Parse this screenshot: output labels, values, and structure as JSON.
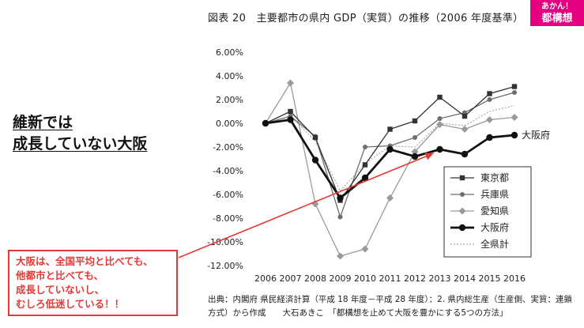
{
  "header": {
    "figure_title": "図表 20　主要都市の県内 GDP（実質）の推移（2006 年度基準）",
    "badge_line1": "あかん！",
    "badge_line2": "都構想"
  },
  "headline": {
    "line1": "維新では",
    "line2": "成長していない大阪"
  },
  "callout": {
    "line1": "大阪は、全国平均と比べても、",
    "line2": "他都市と比べても、",
    "line3": "成長していないし、",
    "line4": "むしろ低迷している！！"
  },
  "source": {
    "line1": "出典：内閣府 県民経済計算（平成 18 年度－平成 28 年度）：2. 県内総生産（生産側、実質：連鎖",
    "line2": "方式）から作成　　大石あきこ　「都構想を止めて大阪を豊かにする5つの方法」"
  },
  "colors": {
    "badge": "#e4007f",
    "callout": "#e53935",
    "tokyo": "#333333",
    "hyogo": "#6e6e6e",
    "aichi": "#9a9a9a",
    "osaka": "#111111",
    "national": "#aaaaaa"
  },
  "chart_data": {
    "type": "line",
    "title": "図表 20　主要都市の県内 GDP（実質）の推移（2006 年度基準）",
    "xlabel": "",
    "ylabel": "",
    "x": [
      "2006",
      "2007",
      "2008",
      "2009",
      "2010",
      "2011",
      "2012",
      "2013",
      "2014",
      "2015",
      "2016"
    ],
    "ylim": [
      -12,
      6
    ],
    "yticks": [
      "6.00%",
      "4.00%",
      "2.00%",
      "0.00%",
      "-2.00%",
      "-4.00%",
      "-6.00%",
      "-8.00%",
      "-10.00%",
      "-12.00%"
    ],
    "legend_position": "right",
    "series": [
      {
        "name": "東京都",
        "marker": "square",
        "values": [
          0,
          1.0,
          -1.2,
          -6.5,
          -3.5,
          -0.5,
          0.2,
          2.2,
          0.6,
          2.5,
          3.1
        ]
      },
      {
        "name": "兵庫県",
        "marker": "circle",
        "values": [
          0,
          0.6,
          -1.1,
          -7.9,
          -2.0,
          -1.9,
          -1.2,
          0.4,
          0.9,
          2.0,
          2.6
        ]
      },
      {
        "name": "愛知県",
        "marker": "diamond",
        "values": [
          0,
          3.4,
          -6.8,
          -11.2,
          -10.6,
          -6.3,
          -2.4,
          -0.1,
          -0.5,
          0.3,
          0.5
        ]
      },
      {
        "name": "大阪府",
        "marker": "circle-bold",
        "values": [
          0,
          0.3,
          -3.1,
          -6.3,
          -4.6,
          -2.2,
          -2.8,
          -2.2,
          -2.6,
          -1.2,
          -1.0
        ]
      },
      {
        "name": "全県計",
        "marker": "dotted",
        "values": [
          0,
          0.6,
          -1.5,
          -5.7,
          -3.4,
          -1.9,
          -2.0,
          0.0,
          -0.2,
          1.0,
          1.5
        ]
      }
    ],
    "end_label": "大阪府",
    "grid": false
  }
}
